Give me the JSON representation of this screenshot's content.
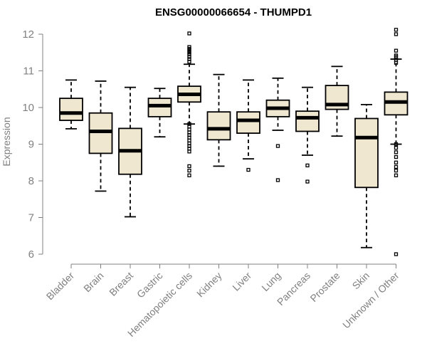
{
  "chart_data": {
    "type": "boxplot",
    "title": "ENSG00000066654 - THUMPD1",
    "xlabel": "",
    "ylabel": "Expression",
    "ylim": [
      6,
      12
    ],
    "yticks": [
      6,
      7,
      8,
      9,
      10,
      11,
      12
    ],
    "grid": false,
    "categories": [
      "Bladder",
      "Brain",
      "Breast",
      "Gastric",
      "Hematopoietic cells",
      "Kidney",
      "Liver",
      "Lung",
      "Pancreas",
      "Prostate",
      "Skin",
      "Unknown / Other"
    ],
    "boxes": [
      {
        "name": "Bladder",
        "whisker_low": 9.42,
        "q1": 9.65,
        "median": 9.85,
        "q3": 10.25,
        "whisker_high": 10.75,
        "outliers": []
      },
      {
        "name": "Brain",
        "whisker_low": 7.72,
        "q1": 8.75,
        "median": 9.35,
        "q3": 9.85,
        "whisker_high": 10.72,
        "outliers": []
      },
      {
        "name": "Breast",
        "whisker_low": 7.02,
        "q1": 8.18,
        "median": 8.82,
        "q3": 9.43,
        "whisker_high": 10.55,
        "outliers": []
      },
      {
        "name": "Gastric",
        "whisker_low": 9.2,
        "q1": 9.75,
        "median": 10.05,
        "q3": 10.25,
        "whisker_high": 10.52,
        "outliers": []
      },
      {
        "name": "Hematopoietic cells",
        "whisker_low": 9.55,
        "q1": 10.15,
        "median": 10.36,
        "q3": 10.58,
        "whisker_high": 11.18,
        "outliers": [
          12.02,
          11.65,
          11.6,
          11.55,
          11.5,
          11.45,
          11.38,
          11.32,
          11.25,
          9.55,
          9.48,
          9.4,
          9.32,
          9.25,
          9.18,
          9.1,
          9.02,
          8.95,
          8.88,
          8.8,
          8.4,
          8.28,
          8.15
        ]
      },
      {
        "name": "Kidney",
        "whisker_low": 8.4,
        "q1": 9.12,
        "median": 9.42,
        "q3": 9.88,
        "whisker_high": 10.9,
        "outliers": []
      },
      {
        "name": "Liver",
        "whisker_low": 8.6,
        "q1": 9.3,
        "median": 9.65,
        "q3": 9.88,
        "whisker_high": 10.75,
        "outliers": [
          8.3
        ]
      },
      {
        "name": "Lung",
        "whisker_low": 9.38,
        "q1": 9.75,
        "median": 9.98,
        "q3": 10.2,
        "whisker_high": 10.8,
        "outliers": [
          8.95,
          8.02
        ]
      },
      {
        "name": "Pancreas",
        "whisker_low": 8.7,
        "q1": 9.35,
        "median": 9.72,
        "q3": 9.9,
        "whisker_high": 10.55,
        "outliers": [
          8.42,
          7.98
        ]
      },
      {
        "name": "Prostate",
        "whisker_low": 9.22,
        "q1": 9.95,
        "median": 10.08,
        "q3": 10.6,
        "whisker_high": 11.12,
        "outliers": []
      },
      {
        "name": "Skin",
        "whisker_low": 6.18,
        "q1": 7.82,
        "median": 9.18,
        "q3": 9.7,
        "whisker_high": 10.08,
        "outliers": []
      },
      {
        "name": "Unknown / Other",
        "whisker_low": 9.0,
        "q1": 9.8,
        "median": 10.15,
        "q3": 10.42,
        "whisker_high": 11.32,
        "outliers": [
          12.12,
          12.0,
          11.55,
          11.42,
          11.38,
          11.3,
          11.22,
          9.0,
          8.9,
          8.78,
          8.65,
          8.5,
          8.38,
          8.28,
          8.15,
          6.0
        ]
      }
    ]
  }
}
